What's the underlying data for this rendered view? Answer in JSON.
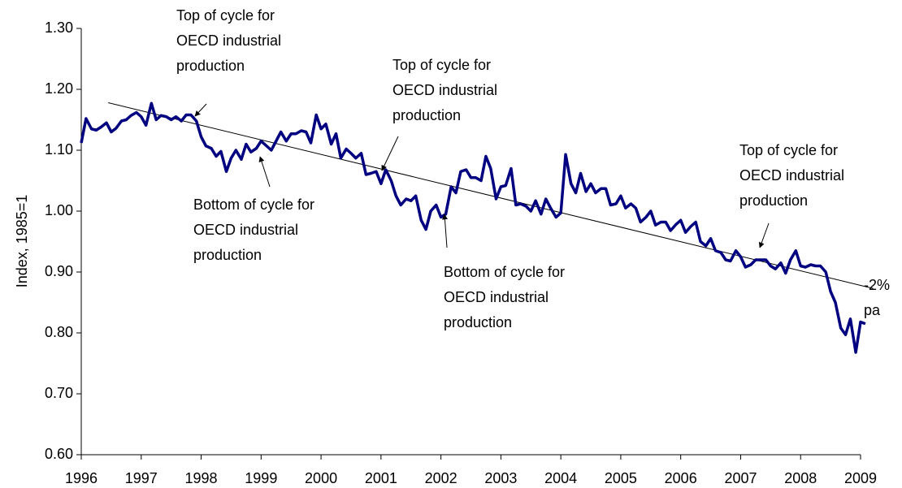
{
  "chart_data": {
    "type": "line",
    "y_label": "Index, 1985=1",
    "x": [
      1996.0,
      1996.08,
      1996.17,
      1996.25,
      1996.33,
      1996.42,
      1996.5,
      1996.58,
      1996.67,
      1996.75,
      1996.83,
      1996.92,
      1997.0,
      1997.08,
      1997.17,
      1997.25,
      1997.33,
      1997.42,
      1997.5,
      1997.58,
      1997.67,
      1997.75,
      1997.83,
      1997.92,
      1998.0,
      1998.08,
      1998.17,
      1998.25,
      1998.33,
      1998.42,
      1998.5,
      1998.58,
      1998.67,
      1998.75,
      1998.83,
      1998.92,
      1999.0,
      1999.08,
      1999.17,
      1999.25,
      1999.33,
      1999.42,
      1999.5,
      1999.58,
      1999.67,
      1999.75,
      1999.83,
      1999.92,
      2000.0,
      2000.08,
      2000.17,
      2000.25,
      2000.33,
      2000.42,
      2000.5,
      2000.58,
      2000.67,
      2000.75,
      2000.83,
      2000.92,
      2001.0,
      2001.08,
      2001.17,
      2001.25,
      2001.33,
      2001.42,
      2001.5,
      2001.58,
      2001.67,
      2001.75,
      2001.83,
      2001.92,
      2002.0,
      2002.08,
      2002.17,
      2002.25,
      2002.33,
      2002.42,
      2002.5,
      2002.58,
      2002.67,
      2002.75,
      2002.83,
      2002.92,
      2003.0,
      2003.08,
      2003.17,
      2003.25,
      2003.33,
      2003.42,
      2003.5,
      2003.58,
      2003.67,
      2003.75,
      2003.83,
      2003.92,
      2004.0,
      2004.08,
      2004.17,
      2004.25,
      2004.33,
      2004.42,
      2004.5,
      2004.58,
      2004.67,
      2004.75,
      2004.83,
      2004.92,
      2005.0,
      2005.08,
      2005.17,
      2005.25,
      2005.33,
      2005.42,
      2005.5,
      2005.58,
      2005.67,
      2005.75,
      2005.83,
      2005.92,
      2006.0,
      2006.08,
      2006.17,
      2006.25,
      2006.33,
      2006.42,
      2006.5,
      2006.58,
      2006.67,
      2006.75,
      2006.83,
      2006.92,
      2007.0,
      2007.08,
      2007.17,
      2007.25,
      2007.33,
      2007.42,
      2007.5,
      2007.58,
      2007.67,
      2007.75,
      2007.83,
      2007.92,
      2008.0,
      2008.08,
      2008.17,
      2008.25,
      2008.33,
      2008.42,
      2008.5,
      2008.58,
      2008.67,
      2008.75,
      2008.83,
      2008.92,
      2009.0,
      2009.08
    ],
    "series": [
      {
        "color": "#000080",
        "values": [
          1.112,
          1.152,
          1.135,
          1.133,
          1.138,
          1.145,
          1.13,
          1.136,
          1.148,
          1.15,
          1.157,
          1.162,
          1.155,
          1.141,
          1.177,
          1.15,
          1.157,
          1.155,
          1.15,
          1.155,
          1.148,
          1.158,
          1.158,
          1.148,
          1.122,
          1.107,
          1.103,
          1.09,
          1.098,
          1.065,
          1.087,
          1.1,
          1.085,
          1.11,
          1.097,
          1.103,
          1.115,
          1.108,
          1.1,
          1.115,
          1.13,
          1.115,
          1.127,
          1.127,
          1.132,
          1.13,
          1.112,
          1.158,
          1.135,
          1.143,
          1.11,
          1.127,
          1.087,
          1.102,
          1.095,
          1.087,
          1.095,
          1.06,
          1.062,
          1.065,
          1.045,
          1.068,
          1.05,
          1.025,
          1.01,
          1.02,
          1.017,
          1.025,
          0.985,
          0.97,
          1.0,
          1.01,
          0.99,
          0.995,
          1.04,
          1.03,
          1.065,
          1.068,
          1.055,
          1.055,
          1.05,
          1.09,
          1.07,
          1.02,
          1.04,
          1.042,
          1.07,
          1.01,
          1.012,
          1.008,
          1.0,
          1.017,
          0.995,
          1.02,
          1.005,
          0.99,
          0.997,
          1.093,
          1.045,
          1.03,
          1.062,
          1.032,
          1.045,
          1.03,
          1.037,
          1.037,
          1.01,
          1.012,
          1.025,
          1.005,
          1.012,
          1.005,
          0.982,
          0.99,
          1.0,
          0.977,
          0.982,
          0.982,
          0.968,
          0.978,
          0.985,
          0.965,
          0.975,
          0.982,
          0.95,
          0.943,
          0.955,
          0.935,
          0.932,
          0.92,
          0.918,
          0.935,
          0.925,
          0.908,
          0.912,
          0.92,
          0.92,
          0.92,
          0.91,
          0.905,
          0.915,
          0.898,
          0.92,
          0.935,
          0.91,
          0.908,
          0.912,
          0.91,
          0.91,
          0.9,
          0.868,
          0.85,
          0.808,
          0.797,
          0.823,
          0.768,
          0.818,
          0.815
        ]
      }
    ],
    "trend_line": {
      "color": "#000000",
      "x": [
        1996.45,
        2009.21
      ],
      "values": [
        1.178,
        0.873
      ]
    },
    "xlim": [
      1996,
      2009
    ],
    "xticks": [
      1996,
      1997,
      1998,
      1999,
      2000,
      2001,
      2002,
      2003,
      2004,
      2005,
      2006,
      2007,
      2008,
      2009
    ],
    "ylim": [
      0.6,
      1.3
    ],
    "yticks": [
      {
        "value": 0.6,
        "label": "0.60"
      },
      {
        "value": 0.7,
        "label": "0.70"
      },
      {
        "value": 0.8,
        "label": "0.80"
      },
      {
        "value": 0.9,
        "label": "0.90"
      },
      {
        "value": 1.0,
        "label": "1.00"
      },
      {
        "value": 1.1,
        "label": "1.10"
      },
      {
        "value": 1.2,
        "label": "1.20"
      },
      {
        "value": 1.3,
        "label": "1.30"
      }
    ],
    "grid": false,
    "annotations": [
      "Top of cycle for\nOECD industrial\nproduction",
      "Top of cycle for\nOECD industrial\nproduction",
      "Top of cycle for\nOECD industrial\nproduction",
      "Bottom of cycle for\nOECD industrial\nproduction",
      "Bottom of cycle for\nOECD industrial\nproduction",
      "-2%\npa"
    ]
  }
}
